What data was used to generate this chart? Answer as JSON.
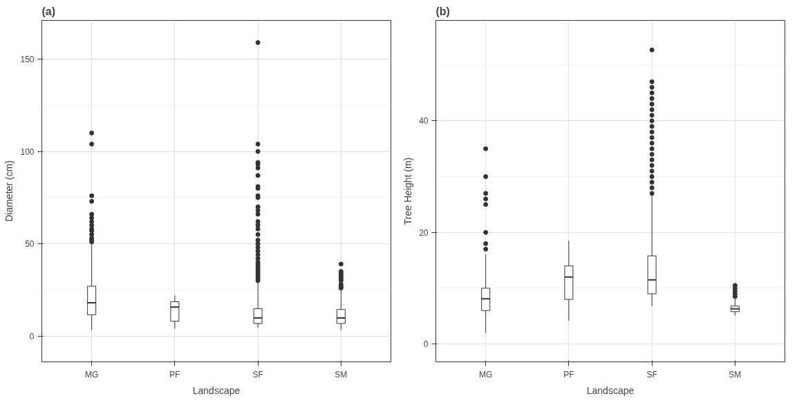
{
  "chart_data": [
    {
      "type": "box",
      "title": "(a)",
      "xlabel": "Landscape",
      "ylabel": "Diameter (cm)",
      "categories": [
        "MG",
        "PF",
        "SF",
        "SM"
      ],
      "color": "#333333",
      "ylim": [
        -14,
        171
      ],
      "yticks": [
        0,
        50,
        100,
        150
      ],
      "grid": true,
      "boxes": [
        {
          "low": 3.3,
          "q1": 11.5,
          "median": 18,
          "q3": 27,
          "high": 50,
          "outliers": [
            51,
            52,
            53,
            55,
            57,
            58,
            60,
            62,
            64,
            66,
            73,
            76,
            104,
            110
          ]
        },
        {
          "low": 4,
          "q1": 8,
          "median": 15.7,
          "q3": 18.6,
          "high": 22
        },
        {
          "low": 4.6,
          "q1": 6.8,
          "median": 9.8,
          "q3": 14.8,
          "high": 29,
          "outliers": [
            30,
            31,
            32,
            33,
            34,
            35,
            36,
            37,
            38,
            39,
            40,
            42,
            44,
            46,
            48,
            50,
            52,
            55,
            58,
            60,
            62,
            66,
            68,
            70,
            75,
            76,
            80,
            81,
            87,
            91,
            93,
            94,
            100,
            104,
            159
          ]
        },
        {
          "low": 3.3,
          "q1": 6.8,
          "median": 9.8,
          "q3": 14.4,
          "high": 25,
          "outliers": [
            26,
            27,
            28,
            30,
            31,
            32,
            33,
            34,
            35,
            39
          ]
        }
      ]
    },
    {
      "type": "box",
      "title": "(b)",
      "xlabel": "Landscape",
      "ylabel": "Tree Height (m)",
      "categories": [
        "MG",
        "PF",
        "SF",
        "SM"
      ],
      "color": "#333333",
      "ylim": [
        -3.2,
        58
      ],
      "yticks": [
        0,
        20,
        40
      ],
      "grid": true,
      "boxes": [
        {
          "low": 2,
          "q1": 6,
          "median": 8.1,
          "q3": 10,
          "high": 16.1,
          "outliers": [
            17,
            18,
            20,
            25,
            26,
            27,
            30,
            35
          ]
        },
        {
          "low": 4.2,
          "q1": 8,
          "median": 12,
          "q3": 14,
          "high": 18.5
        },
        {
          "low": 6.8,
          "q1": 9,
          "median": 11.5,
          "q3": 15.8,
          "high": 26.8,
          "outliers": [
            27,
            28,
            29,
            30,
            31,
            32,
            33,
            34,
            35,
            36,
            37,
            38,
            39,
            40,
            41,
            42,
            43,
            44,
            45,
            46,
            47,
            52.7
          ]
        },
        {
          "low": 5.1,
          "q1": 5.8,
          "median": 6.3,
          "q3": 6.8,
          "high": 8.1,
          "outliers": [
            8.5,
            9,
            9.5,
            10,
            10.5
          ]
        }
      ]
    }
  ]
}
